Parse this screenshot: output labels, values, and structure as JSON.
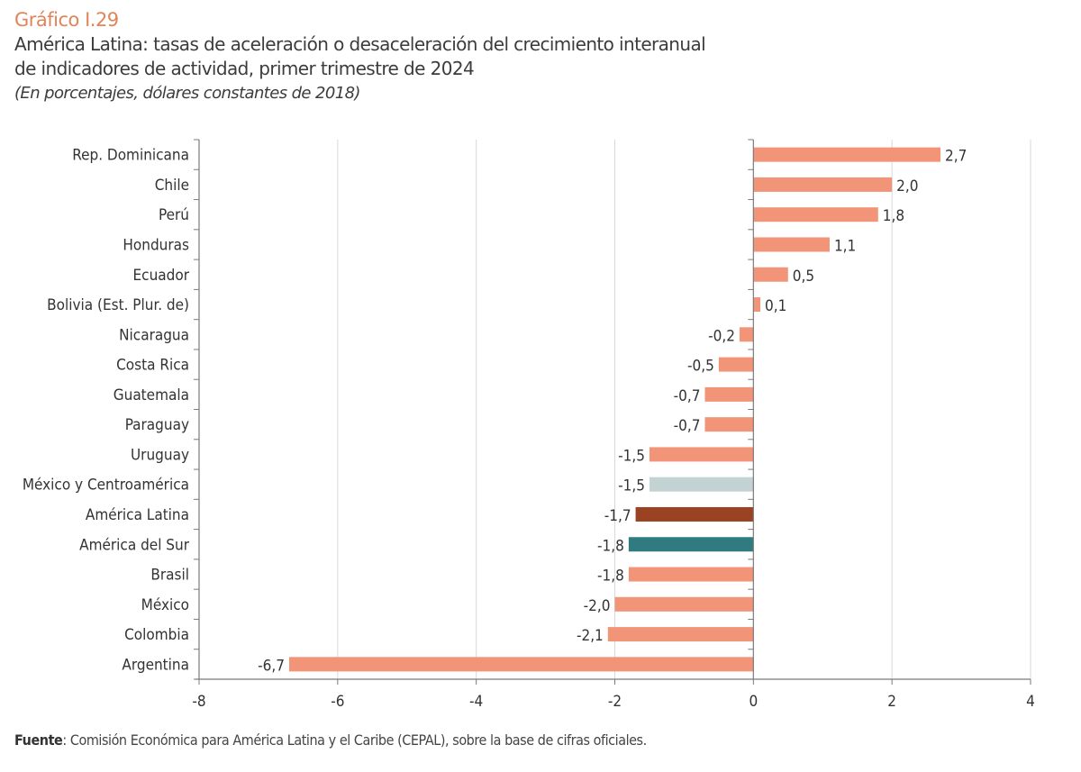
{
  "header": {
    "figure_label": "Gráfico I.29",
    "title_line1": "América Latina: tasas de aceleración o desaceleración del crecimiento interanual",
    "title_line2": "de indicadores de actividad, primer trimestre de 2024",
    "subtitle": "(En porcentajes, dólares constantes de 2018)"
  },
  "footer": {
    "source_label": "Fuente",
    "source_text": ":  Comisión Económica para América Latina y el Caribe (CEPAL), sobre la base de cifras oficiales."
  },
  "colors": {
    "country": "#f29478",
    "mexico_centroamerica": "#c3d3d3",
    "america_latina": "#9a4222",
    "america_del_sur": "#2f7b80",
    "grid": "#d9d9d9",
    "axis": "#7a7a7a"
  },
  "chart_data": {
    "type": "bar",
    "orientation": "horizontal",
    "title": "América Latina: tasas de aceleración o desaceleración del crecimiento interanual de indicadores de actividad, primer trimestre de 2024",
    "subtitle": "(En porcentajes, dólares constantes de 2018)",
    "xlabel": "",
    "ylabel": "",
    "xlim": [
      -8,
      4
    ],
    "xticks": [
      -8,
      -6,
      -4,
      -2,
      0,
      2,
      4
    ],
    "xtick_labels": [
      "-8",
      "-6",
      "-4",
      "-2",
      "0",
      "2",
      "4"
    ],
    "grid": "vertical",
    "categories": [
      "Rep. Dominicana",
      "Chile",
      "Perú",
      "Honduras",
      "Ecuador",
      "Bolivia (Est. Plur. de)",
      "Nicaragua",
      "Costa Rica",
      "Guatemala",
      "Paraguay",
      "Uruguay",
      "México y Centroamérica",
      "América Latina",
      "América del Sur",
      "Brasil",
      "México",
      "Colombia",
      "Argentina"
    ],
    "values": [
      2.7,
      2.0,
      1.8,
      1.1,
      0.5,
      0.1,
      -0.2,
      -0.5,
      -0.7,
      -0.7,
      -1.5,
      -1.5,
      -1.7,
      -1.8,
      -1.8,
      -2.0,
      -2.1,
      -6.7
    ],
    "value_labels": [
      "2,7",
      "2,0",
      "1,8",
      "1,1",
      "0,5",
      "0,1",
      "-0,2",
      "-0,5",
      "-0,7",
      "-0,7",
      "-1,5",
      "-1,5",
      "-1,7",
      "-1,8",
      "-1,8",
      "-2,0",
      "-2,1",
      "-6,7"
    ],
    "bar_groups": [
      "country",
      "country",
      "country",
      "country",
      "country",
      "country",
      "country",
      "country",
      "country",
      "country",
      "country",
      "mexico_centroamerica",
      "america_latina",
      "america_del_sur",
      "country",
      "country",
      "country",
      "country"
    ]
  }
}
